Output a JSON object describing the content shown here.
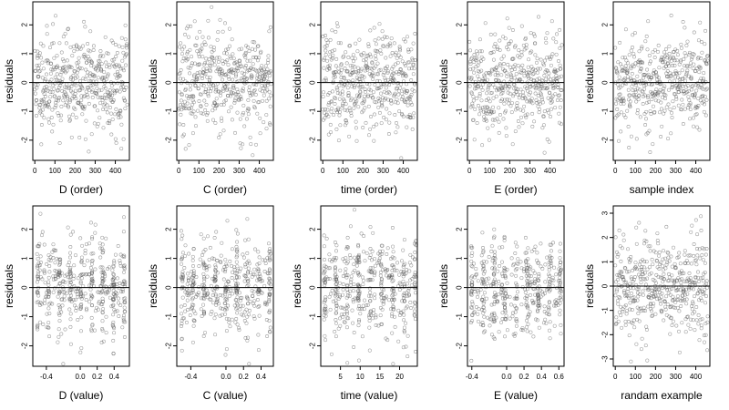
{
  "chart_data": [
    {
      "type": "scatter",
      "xlabel": "D (order)",
      "ylabel": "residuals",
      "xlim": [
        -10,
        470
      ],
      "ylim": [
        -2.7,
        2.8
      ],
      "xticks": [
        0,
        100,
        200,
        300,
        400
      ],
      "yticks": [
        -2,
        -1,
        0,
        1,
        2
      ],
      "ytick_labels": [
        "-2",
        "-1",
        "0",
        "1",
        "2"
      ],
      "points": "order",
      "seed": 11,
      "hline": 0
    },
    {
      "type": "scatter",
      "xlabel": "C (order)",
      "ylabel": "residuals",
      "xlim": [
        -10,
        470
      ],
      "ylim": [
        -2.7,
        2.8
      ],
      "xticks": [
        0,
        100,
        200,
        300,
        400
      ],
      "yticks": [
        -2,
        -1,
        0,
        1,
        2
      ],
      "ytick_labels": [
        "-2",
        "-1",
        "0",
        "1",
        "2"
      ],
      "points": "order",
      "seed": 23,
      "hline": 0
    },
    {
      "type": "scatter",
      "xlabel": "time (order)",
      "ylabel": "residuals",
      "xlim": [
        -10,
        470
      ],
      "ylim": [
        -2.7,
        2.8
      ],
      "xticks": [
        0,
        100,
        200,
        300,
        400
      ],
      "yticks": [
        -2,
        -1,
        0,
        1,
        2
      ],
      "ytick_labels": [
        "-2",
        "-1",
        "0",
        "1",
        "2"
      ],
      "points": "order",
      "seed": 37,
      "hline": 0
    },
    {
      "type": "scatter",
      "xlabel": "E (order)",
      "ylabel": "residuals",
      "xlim": [
        -10,
        470
      ],
      "ylim": [
        -2.7,
        2.8
      ],
      "xticks": [
        0,
        100,
        200,
        300,
        400
      ],
      "yticks": [
        -2,
        -1,
        0,
        1,
        2
      ],
      "ytick_labels": [
        "-2",
        "-1",
        "0",
        "1",
        "2"
      ],
      "points": "order",
      "seed": 41,
      "hline": 0
    },
    {
      "type": "scatter",
      "xlabel": "sample index",
      "ylabel": "residuals",
      "xlim": [
        -10,
        470
      ],
      "ylim": [
        -2.7,
        2.8
      ],
      "xticks": [
        0,
        100,
        200,
        300,
        400
      ],
      "yticks": [
        -2,
        -1,
        0,
        1,
        2
      ],
      "ytick_labels": [
        "-2",
        "-1",
        "0",
        "1",
        "2"
      ],
      "points": "order",
      "seed": 53,
      "hline": 0
    },
    {
      "type": "scatter",
      "xlabel": "D (value)",
      "ylabel": "residuals",
      "xlim": [
        -0.56,
        0.58
      ],
      "ylim": [
        -2.7,
        2.8
      ],
      "xticks": [
        -0.4,
        0.0,
        0.2,
        0.4
      ],
      "xtick_labels": [
        "-0.4",
        "0.0",
        "0.2",
        "0.4"
      ],
      "yticks": [
        -2,
        -1,
        0,
        1,
        2
      ],
      "ytick_labels": [
        "-2",
        "-1",
        "0",
        "1",
        "2"
      ],
      "points": "value",
      "x_range": [
        -0.5,
        0.52
      ],
      "seed": 61,
      "hline": 0
    },
    {
      "type": "scatter",
      "xlabel": "C (value)",
      "ylabel": "residuals",
      "xlim": [
        -0.56,
        0.54
      ],
      "ylim": [
        -2.7,
        2.8
      ],
      "xticks": [
        -0.4,
        0.0,
        0.2,
        0.4
      ],
      "xtick_labels": [
        "-0.4",
        "0.0",
        "0.2",
        "0.4"
      ],
      "yticks": [
        -2,
        -1,
        0,
        1,
        2
      ],
      "ytick_labels": [
        "-2",
        "-1",
        "0",
        "1",
        "2"
      ],
      "points": "value",
      "x_range": [
        -0.5,
        0.5
      ],
      "seed": 71,
      "hline": 0
    },
    {
      "type": "scatter",
      "xlabel": "time (value)",
      "ylabel": "residuals",
      "xlim": [
        0,
        24.5
      ],
      "ylim": [
        -2.7,
        2.8
      ],
      "xticks": [
        5,
        10,
        15,
        20
      ],
      "xtick_labels": [
        "5",
        "10",
        "15",
        "20"
      ],
      "yticks": [
        -2,
        -1,
        0,
        1,
        2
      ],
      "ytick_labels": [
        "-2",
        "-1",
        "0",
        "1",
        "2"
      ],
      "points": "value",
      "x_range": [
        1,
        24
      ],
      "seed": 83,
      "hline": 0
    },
    {
      "type": "scatter",
      "xlabel": "E (value)",
      "ylabel": "residuals",
      "xlim": [
        -0.45,
        0.66
      ],
      "ylim": [
        -2.7,
        2.8
      ],
      "xticks": [
        -0.4,
        0.0,
        0.2,
        0.4,
        0.6
      ],
      "xtick_labels": [
        "-0.4",
        "0.0",
        "0.2",
        "0.4",
        "0.6"
      ],
      "yticks": [
        -2,
        -1,
        0,
        1,
        2
      ],
      "ytick_labels": [
        "-2",
        "-1",
        "0",
        "1",
        "2"
      ],
      "points": "value",
      "x_range": [
        -0.4,
        0.62
      ],
      "seed": 97,
      "hline": 0
    },
    {
      "type": "scatter",
      "xlabel": "randam example",
      "ylabel": "residuals",
      "xlim": [
        -10,
        470
      ],
      "ylim": [
        -3.3,
        3.3
      ],
      "xticks": [
        0,
        100,
        200,
        300,
        400
      ],
      "yticks": [
        -3,
        -2,
        -1,
        0,
        1,
        2,
        3
      ],
      "ytick_labels": [
        "-3",
        "-2",
        "-1",
        "0",
        "1",
        "2",
        "3"
      ],
      "points": "order",
      "seed": 109,
      "hline": 0
    }
  ],
  "style": {
    "point_color": "#555555",
    "line_color": "#000000",
    "axis_color": "#000000"
  }
}
